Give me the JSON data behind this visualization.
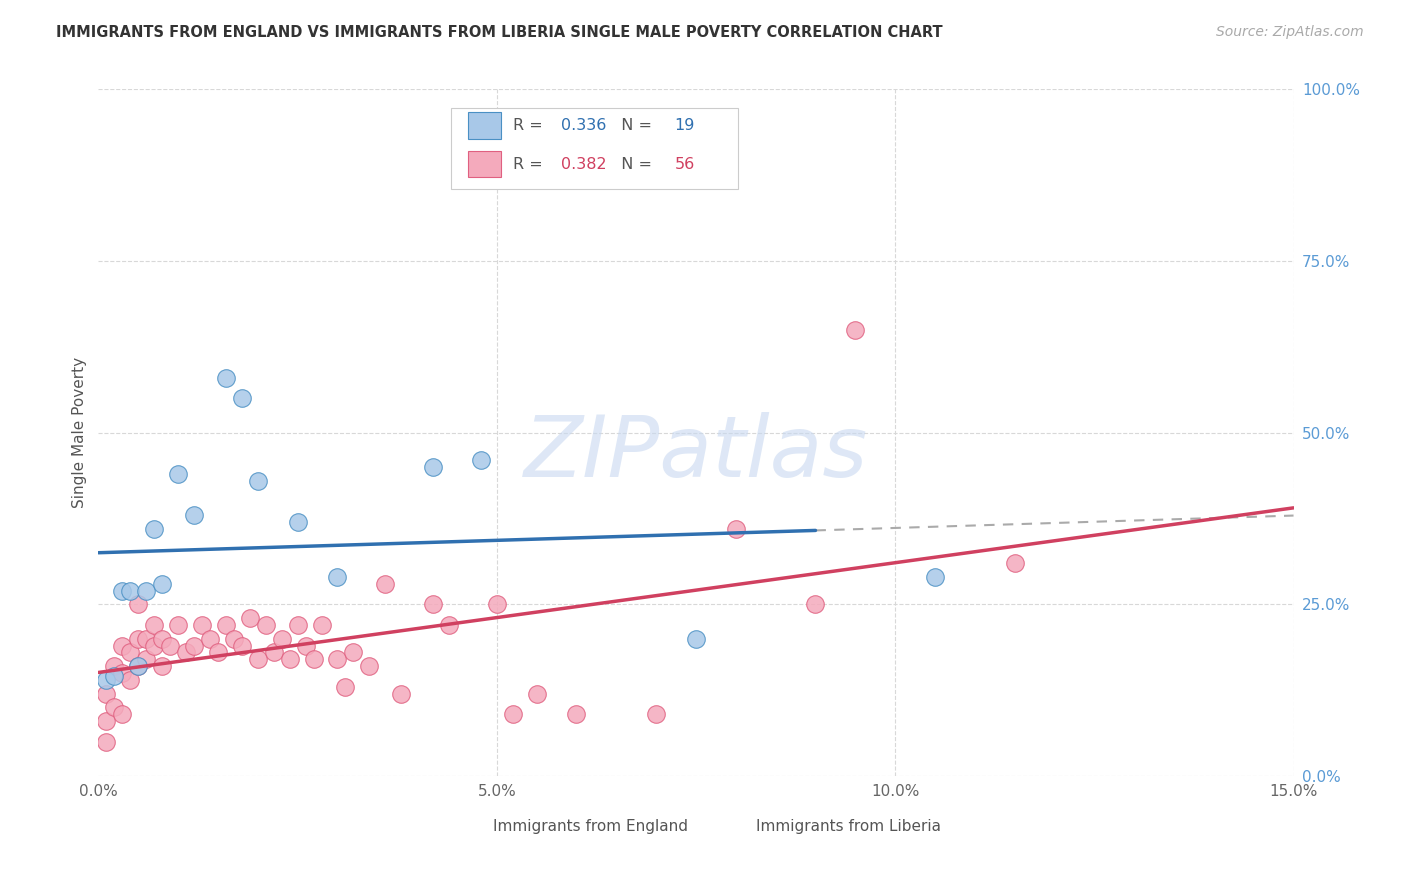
{
  "title": "IMMIGRANTS FROM ENGLAND VS IMMIGRANTS FROM LIBERIA SINGLE MALE POVERTY CORRELATION CHART",
  "source": "Source: ZipAtlas.com",
  "ylabel": "Single Male Poverty",
  "xlim": [
    0.0,
    0.15
  ],
  "ylim": [
    0.0,
    1.0
  ],
  "xticks": [
    0.0,
    0.05,
    0.1,
    0.15
  ],
  "xticklabels": [
    "0.0%",
    "5.0%",
    "10.0%",
    "15.0%"
  ],
  "yticks_right": [
    0.0,
    0.25,
    0.5,
    0.75,
    1.0
  ],
  "yticklabels_right": [
    "0.0%",
    "25.0%",
    "50.0%",
    "75.0%",
    "100.0%"
  ],
  "england_R": 0.336,
  "england_N": 19,
  "liberia_R": 0.382,
  "liberia_N": 56,
  "england_fill_color": "#a8c8e8",
  "liberia_fill_color": "#f4aabc",
  "england_edge_color": "#4a90c4",
  "liberia_edge_color": "#e06080",
  "england_line_color": "#3070b0",
  "liberia_line_color": "#d04060",
  "dashed_line_color": "#aaaaaa",
  "background_color": "#ffffff",
  "grid_color": "#d8d8d8",
  "title_color": "#333333",
  "right_axis_color": "#5b9bd5",
  "watermark_color": "#c8d8f0",
  "watermark": "ZIPatlas",
  "england_x": [
    0.001,
    0.002,
    0.003,
    0.004,
    0.005,
    0.006,
    0.007,
    0.008,
    0.01,
    0.012,
    0.016,
    0.018,
    0.02,
    0.025,
    0.03,
    0.042,
    0.048,
    0.075,
    0.105
  ],
  "england_y": [
    0.14,
    0.145,
    0.27,
    0.27,
    0.16,
    0.27,
    0.36,
    0.28,
    0.44,
    0.38,
    0.58,
    0.55,
    0.43,
    0.37,
    0.29,
    0.45,
    0.46,
    0.2,
    0.29
  ],
  "liberia_x": [
    0.001,
    0.001,
    0.001,
    0.002,
    0.002,
    0.003,
    0.003,
    0.003,
    0.004,
    0.004,
    0.005,
    0.005,
    0.005,
    0.006,
    0.006,
    0.007,
    0.007,
    0.008,
    0.008,
    0.009,
    0.01,
    0.011,
    0.012,
    0.013,
    0.014,
    0.015,
    0.016,
    0.017,
    0.018,
    0.019,
    0.02,
    0.021,
    0.022,
    0.023,
    0.024,
    0.025,
    0.026,
    0.027,
    0.028,
    0.03,
    0.031,
    0.032,
    0.034,
    0.036,
    0.038,
    0.042,
    0.044,
    0.05,
    0.052,
    0.055,
    0.06,
    0.07,
    0.08,
    0.09,
    0.095,
    0.115
  ],
  "liberia_y": [
    0.05,
    0.08,
    0.12,
    0.1,
    0.16,
    0.09,
    0.15,
    0.19,
    0.14,
    0.18,
    0.16,
    0.2,
    0.25,
    0.17,
    0.2,
    0.19,
    0.22,
    0.16,
    0.2,
    0.19,
    0.22,
    0.18,
    0.19,
    0.22,
    0.2,
    0.18,
    0.22,
    0.2,
    0.19,
    0.23,
    0.17,
    0.22,
    0.18,
    0.2,
    0.17,
    0.22,
    0.19,
    0.17,
    0.22,
    0.17,
    0.13,
    0.18,
    0.16,
    0.28,
    0.12,
    0.25,
    0.22,
    0.25,
    0.09,
    0.12,
    0.09,
    0.09,
    0.36,
    0.25,
    0.65,
    0.31
  ]
}
